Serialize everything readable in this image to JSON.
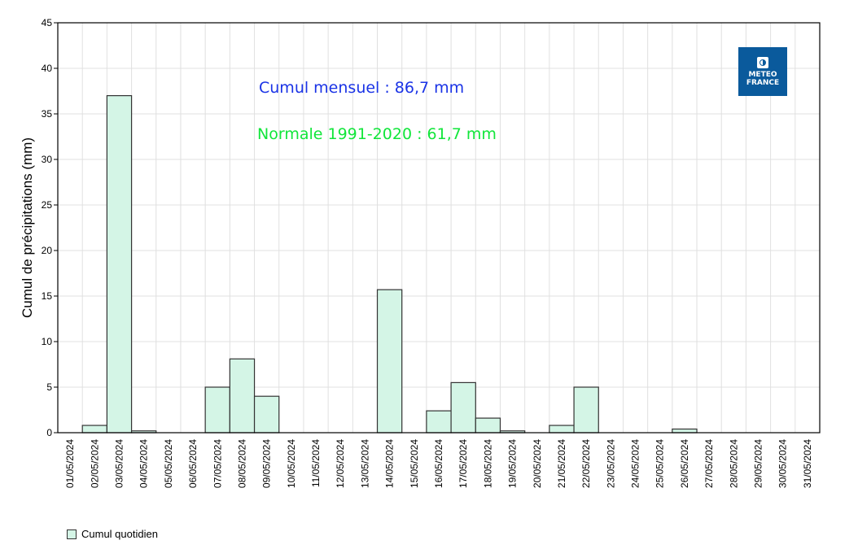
{
  "chart_data": {
    "type": "bar",
    "title": "",
    "xlabel": "",
    "ylabel": "Cumul de précipitations (mm)",
    "ylim": [
      0,
      45
    ],
    "yticks": [
      0,
      5,
      10,
      15,
      20,
      25,
      30,
      35,
      40,
      45
    ],
    "grid": true,
    "legend_position": "bottom-left",
    "categories": [
      "01/05/2024",
      "02/05/2024",
      "03/05/2024",
      "04/05/2024",
      "05/05/2024",
      "06/05/2024",
      "07/05/2024",
      "08/05/2024",
      "09/05/2024",
      "10/05/2024",
      "11/05/2024",
      "12/05/2024",
      "13/05/2024",
      "14/05/2024",
      "15/05/2024",
      "16/05/2024",
      "17/05/2024",
      "18/05/2024",
      "19/05/2024",
      "20/05/2024",
      "21/05/2024",
      "22/05/2024",
      "23/05/2024",
      "24/05/2024",
      "25/05/2024",
      "26/05/2024",
      "27/05/2024",
      "28/05/2024",
      "29/05/2024",
      "30/05/2024",
      "31/05/2024"
    ],
    "series": [
      {
        "name": "Cumul quotidien",
        "color": "#d4f5e6",
        "values": [
          0,
          0.8,
          37.0,
          0.2,
          0,
          0,
          5.0,
          8.1,
          4.0,
          0,
          0,
          0,
          0,
          15.7,
          0,
          2.4,
          5.5,
          1.6,
          0.2,
          0,
          0.8,
          5.0,
          0,
          0,
          0,
          0.4,
          0,
          0,
          0,
          0,
          0
        ]
      }
    ],
    "annotations": [
      {
        "text": "Cumul mensuel : 86,7 mm",
        "color": "#1a33e6"
      },
      {
        "text": "Normale 1991-2020 : 61,7 mm",
        "color": "#11e63a"
      }
    ]
  },
  "annotations": {
    "monthly_total": "Cumul mensuel : 86,7 mm",
    "normal": "Normale 1991-2020 : 61,7 mm"
  },
  "axis": {
    "ylabel": "Cumul de précipitations (mm)"
  },
  "legend": {
    "label": "Cumul quotidien"
  },
  "logo": {
    "line1": "METEO",
    "line2": "FRANCE",
    "color": "#0a5a9c"
  }
}
